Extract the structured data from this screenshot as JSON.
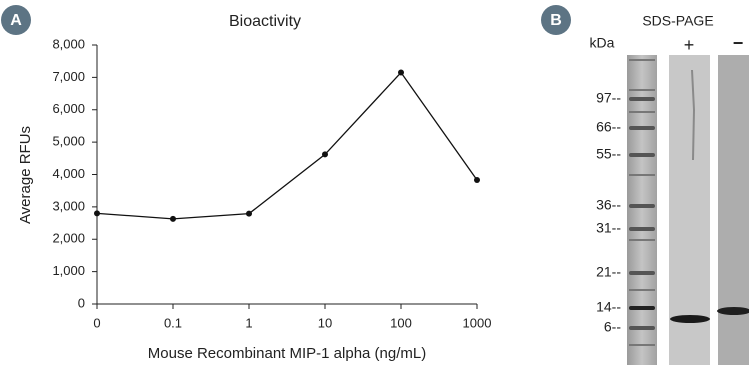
{
  "panels": {
    "a": "A",
    "b": "B"
  },
  "chart_data": {
    "type": "line",
    "title": "Bioactivity",
    "x_label": "Mouse Recombinant MIP-1 alpha (ng/mL)",
    "y_label": "Average RFUs",
    "categories": [
      "0",
      "0.1",
      "1",
      "10",
      "100",
      "1000"
    ],
    "values": [
      2800,
      2630,
      2790,
      4620,
      7150,
      3830
    ],
    "color": "#111111",
    "ylim": [
      0,
      8000
    ],
    "yticks": [
      0,
      {
        "value": 1000,
        "label": "1,000"
      },
      {
        "value": 2000,
        "label": "2,000"
      },
      {
        "value": 3000,
        "label": "3,000"
      },
      {
        "value": 4000,
        "label": "4,000"
      },
      {
        "value": 5000,
        "label": "5,000"
      },
      {
        "value": 6000,
        "label": "6,000"
      },
      {
        "value": 7000,
        "label": "7,000"
      },
      {
        "value": 8000,
        "label": "8,000"
      }
    ],
    "grid": false
  },
  "gel": {
    "title": "SDS-PAGE",
    "unit": "kDa",
    "lanes": [
      "+",
      "−"
    ],
    "markers": [
      "97--",
      "66--",
      "55--",
      "36--",
      "31--",
      "21--",
      "14--",
      "6--"
    ]
  }
}
